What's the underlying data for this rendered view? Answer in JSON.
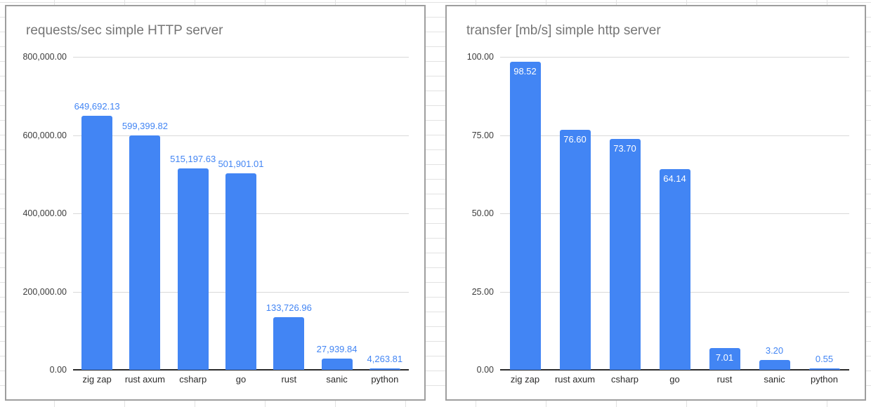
{
  "sheet": {
    "background": "#ffffff",
    "grid_line_color": "#e2e2e2"
  },
  "colors": {
    "bar": "#4285f4",
    "value_label_outside": "#4285f4",
    "value_label_inside": "#ffffff",
    "title": "#757575",
    "axis_label": "#3c3c3c",
    "gridline": "#d9d9d9",
    "baseline": "#2b2b2b",
    "card_border": "#9e9e9e",
    "card_background": "#ffffff"
  },
  "chart_data": [
    {
      "type": "bar",
      "title": "requests/sec simple HTTP server",
      "xlabel": "",
      "ylabel": "",
      "legend": "none",
      "grid": true,
      "categories": [
        "zig zap",
        "rust axum",
        "csharp",
        "go",
        "rust",
        "sanic",
        "python"
      ],
      "values": [
        649692.13,
        599399.82,
        515197.63,
        501901.01,
        133726.96,
        27939.84,
        4263.81
      ],
      "value_labels": [
        "649,692.13",
        "599,399.82",
        "515,197.63",
        "501,901.01",
        "133,726.96",
        "27,939.84",
        "4,263.81"
      ],
      "label_inside": [
        false,
        false,
        false,
        false,
        false,
        false,
        false
      ],
      "ylim": [
        0,
        800000
      ],
      "ytick_values": [
        800000,
        600000,
        400000,
        200000,
        0
      ],
      "ytick_labels": [
        "800,000.00",
        "600,000.00",
        "400,000.00",
        "200,000.00",
        "0.00"
      ]
    },
    {
      "type": "bar",
      "title": "transfer [mb/s] simple http server",
      "xlabel": "",
      "ylabel": "",
      "legend": "none",
      "grid": true,
      "categories": [
        "zig zap",
        "rust axum",
        "csharp",
        "go",
        "rust",
        "sanic",
        "python"
      ],
      "values": [
        98.52,
        76.6,
        73.7,
        64.14,
        7.01,
        3.2,
        0.55
      ],
      "value_labels": [
        "98.52",
        "76.60",
        "73.70",
        "64.14",
        "7.01",
        "3.20",
        "0.55"
      ],
      "label_inside": [
        true,
        true,
        true,
        true,
        true,
        false,
        false
      ],
      "ylim": [
        0,
        100
      ],
      "ytick_values": [
        100,
        75,
        50,
        25,
        0
      ],
      "ytick_labels": [
        "100.00",
        "75.00",
        "50.00",
        "25.00",
        "0.00"
      ]
    }
  ]
}
